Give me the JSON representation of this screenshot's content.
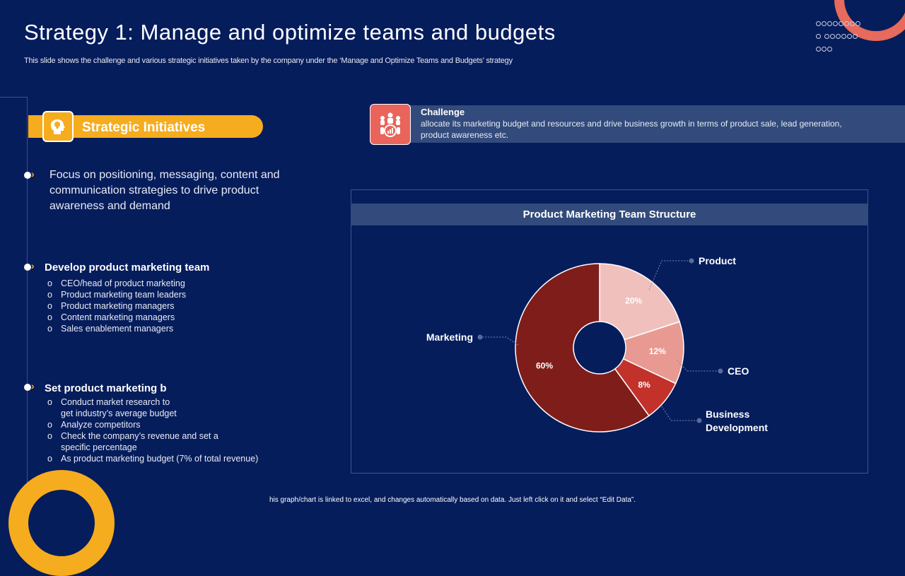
{
  "page": {
    "title": "Strategy 1: Manage and optimize teams and budgets",
    "subtitle": "This slide shows the challenge and various strategic initiatives taken by the company under the ‘Manage and Optimize Teams and Budgets’ strategy",
    "footer": "his graph/chart is linked to excel, and changes automatically based on data. Just left click on it and select “Edit Data”."
  },
  "initiatives": {
    "label": "Strategic Initiatives",
    "bullet1": "Focus on positioning, messaging, content and communication strategies to drive product awareness and demand",
    "section2": {
      "heading": "Develop product marketing team",
      "items": [
        "CEO/head of product marketing",
        "Product marketing team leaders",
        "Product marketing managers",
        "Content marketing managers",
        "Sales enablement  managers"
      ]
    },
    "section3": {
      "heading": "Set product marketing b",
      "items": [
        "Conduct market research to get industry’s average  budget",
        "Analyze competitors",
        "Check the company’s revenue  and set a specific percentage",
        " As product marketing budget (7% of total revenue)"
      ]
    }
  },
  "challenge": {
    "title": "Challenge",
    "text": "allocate its marketing budget and resources and drive business growth in terms of product sale, lead generation,  product awareness etc."
  },
  "colors": {
    "background": "#061d5c",
    "accent_yellow": "#f6ac1f",
    "accent_coral": "#e9645a",
    "panel": "#324b7c"
  },
  "chart_data": {
    "type": "pie",
    "variant": "donut",
    "title": "Product Marketing Team Structure",
    "slices": [
      {
        "name": "Product",
        "value": 20,
        "label": "20%",
        "color": "#f0c0bd"
      },
      {
        "name": "CEO",
        "value": 12,
        "label": "12%",
        "color": "#e89a92"
      },
      {
        "name": "Business Development",
        "value": 8,
        "label": "8%",
        "color": "#c2322b"
      },
      {
        "name": "Marketing",
        "value": 60,
        "label": "60%",
        "color": "#7f1d1b"
      }
    ]
  }
}
